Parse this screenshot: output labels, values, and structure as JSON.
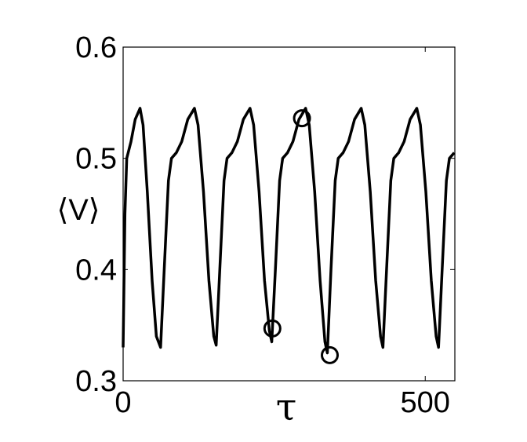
{
  "chart_data": {
    "type": "line",
    "xlabel": "τ",
    "ylabel": "⟨V⟩",
    "xlim": [
      0,
      549
    ],
    "ylim": [
      0.3,
      0.6
    ],
    "xticks": [
      0,
      500
    ],
    "yticks": [
      0.3,
      0.4,
      0.5,
      0.6
    ],
    "series": [
      {
        "color": "#000000",
        "x": [
          0,
          3,
          6,
          13,
          20,
          28,
          33,
          40,
          48,
          55,
          62,
          68,
          75,
          80,
          88,
          97,
          107,
          118,
          124,
          133,
          142,
          150,
          154,
          160,
          167,
          172,
          180,
          189,
          199,
          210,
          216,
          225,
          234,
          242,
          246,
          252,
          259,
          264,
          272,
          281,
          291,
          302,
          308,
          317,
          326,
          334,
          338,
          344,
          351,
          356,
          364,
          373,
          383,
          394,
          400,
          409,
          418,
          426,
          430,
          436,
          443,
          448,
          456,
          465,
          475,
          486,
          492,
          501,
          510,
          518,
          522,
          528,
          535,
          540,
          548
        ],
        "values": [
          0.33,
          0.45,
          0.5,
          0.515,
          0.535,
          0.545,
          0.53,
          0.47,
          0.39,
          0.34,
          0.33,
          0.4,
          0.48,
          0.5,
          0.505,
          0.515,
          0.535,
          0.545,
          0.53,
          0.47,
          0.39,
          0.34,
          0.332,
          0.4,
          0.48,
          0.5,
          0.505,
          0.515,
          0.535,
          0.545,
          0.53,
          0.47,
          0.39,
          0.345,
          0.335,
          0.4,
          0.48,
          0.5,
          0.505,
          0.515,
          0.535,
          0.545,
          0.53,
          0.47,
          0.39,
          0.335,
          0.325,
          0.4,
          0.48,
          0.5,
          0.505,
          0.515,
          0.535,
          0.545,
          0.53,
          0.47,
          0.39,
          0.34,
          0.33,
          0.4,
          0.48,
          0.5,
          0.505,
          0.515,
          0.535,
          0.545,
          0.53,
          0.47,
          0.39,
          0.34,
          0.33,
          0.4,
          0.48,
          0.5,
          0.505
        ]
      }
    ],
    "markers": {
      "x": [
        247,
        296,
        342
      ],
      "values": [
        0.347,
        0.536,
        0.323
      ],
      "color": "#000000"
    }
  }
}
